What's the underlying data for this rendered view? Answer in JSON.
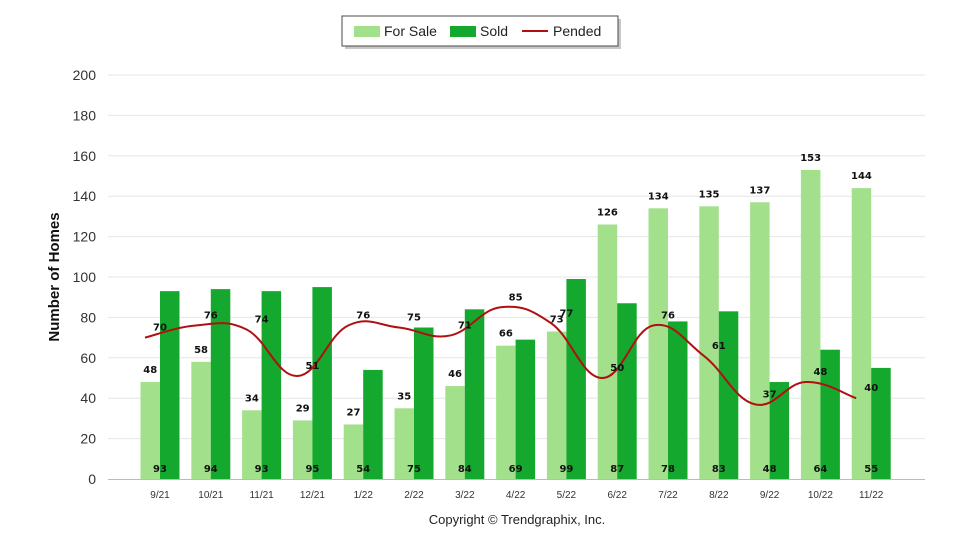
{
  "chart_data": {
    "type": "bar",
    "title": "",
    "xlabel": "",
    "ylabel": "Number of Homes",
    "ylim": [
      0,
      200
    ],
    "yticks": [
      0,
      20,
      40,
      60,
      80,
      100,
      120,
      140,
      160,
      180,
      200
    ],
    "grid": true,
    "legend_position": "top-center",
    "categories": [
      "9/21",
      "10/21",
      "11/21",
      "12/21",
      "1/22",
      "2/22",
      "3/22",
      "4/22",
      "5/22",
      "6/22",
      "7/22",
      "8/22",
      "9/22",
      "10/22",
      "11/22"
    ],
    "series": [
      {
        "name": "For Sale",
        "kind": "bar",
        "color": "#a3e08c",
        "values": [
          48,
          58,
          34,
          29,
          27,
          35,
          46,
          66,
          73,
          126,
          134,
          135,
          137,
          153,
          144
        ]
      },
      {
        "name": "Sold",
        "kind": "bar",
        "color": "#14a82e",
        "values": [
          93,
          94,
          93,
          95,
          54,
          75,
          84,
          69,
          99,
          87,
          78,
          83,
          48,
          64,
          55
        ]
      },
      {
        "name": "Pended",
        "kind": "line",
        "color": "#b01010",
        "values": [
          70,
          76,
          74,
          51,
          76,
          75,
          71,
          85,
          77,
          50,
          76,
          61,
          37,
          48,
          40
        ]
      }
    ],
    "footer": "Copyright © Trendgraphix, Inc."
  }
}
